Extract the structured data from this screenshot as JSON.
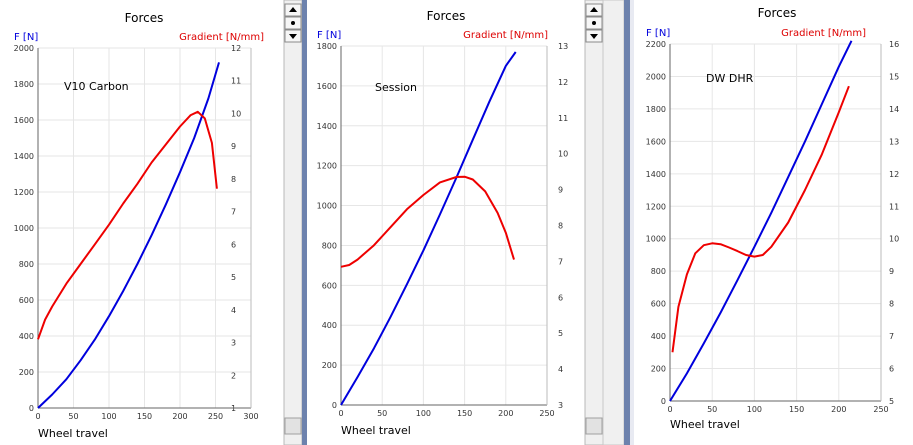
{
  "colors": {
    "force": "#0000dd",
    "gradient": "#ee0000",
    "axis_left_label": "#0000dd",
    "axis_right_label": "#dd0000",
    "divider": "#6d82ad",
    "scrollbar_track": "#f0f0f0",
    "scrollbar_border": "#b9b9b9"
  },
  "icons": {
    "scroll_up": "triangle-up-icon",
    "scroll_mid": "dot-icon",
    "scroll_down": "triangle-down-icon"
  },
  "chart_data": [
    {
      "type": "line",
      "title": "Forces",
      "xlabel": "Wheel travel",
      "ylabel": "F [N]",
      "y2label": "Gradient [N/mm]",
      "annotation": "V10 Carbon",
      "xlim": [
        0,
        300
      ],
      "ylim": [
        0,
        2000
      ],
      "y2lim": [
        1,
        12
      ],
      "x_ticks": [
        0,
        50,
        100,
        150,
        200,
        250,
        300
      ],
      "y_ticks": [
        0,
        200,
        400,
        600,
        800,
        1000,
        1200,
        1400,
        1600,
        1800,
        2000
      ],
      "y2_ticks": [
        1,
        2,
        3,
        4,
        5,
        6,
        7,
        8,
        9,
        10,
        11,
        12
      ],
      "grid": true,
      "series": [
        {
          "axis": "left",
          "x": [
            0,
            20,
            40,
            60,
            80,
            100,
            120,
            140,
            160,
            180,
            200,
            220,
            240,
            255
          ],
          "y": [
            0,
            75,
            160,
            265,
            380,
            510,
            650,
            800,
            960,
            1130,
            1310,
            1500,
            1720,
            1920
          ]
        },
        {
          "axis": "right",
          "x": [
            0,
            10,
            20,
            40,
            60,
            80,
            100,
            120,
            140,
            160,
            180,
            200,
            215,
            225,
            235,
            245,
            252
          ],
          "y": [
            3.1,
            3.7,
            4.1,
            4.8,
            5.4,
            6.0,
            6.6,
            7.25,
            7.85,
            8.5,
            9.05,
            9.6,
            9.95,
            10.05,
            9.85,
            9.1,
            7.7
          ]
        }
      ]
    },
    {
      "type": "line",
      "title": "Forces",
      "xlabel": "Wheel travel",
      "ylabel": "F [N]",
      "y2label": "Gradient [N/mm]",
      "annotation": "Session",
      "xlim": [
        0,
        250
      ],
      "ylim": [
        0,
        1800
      ],
      "y2lim": [
        3,
        13
      ],
      "x_ticks": [
        0,
        50,
        100,
        150,
        200,
        250
      ],
      "y_ticks": [
        0,
        200,
        400,
        600,
        800,
        1000,
        1200,
        1400,
        1600,
        1800
      ],
      "y2_ticks": [
        3,
        4,
        5,
        6,
        7,
        8,
        9,
        10,
        11,
        12,
        13
      ],
      "grid": true,
      "series": [
        {
          "axis": "left",
          "x": [
            0,
            20,
            40,
            60,
            80,
            100,
            120,
            140,
            160,
            180,
            200,
            212
          ],
          "y": [
            0,
            140,
            285,
            440,
            605,
            775,
            955,
            1140,
            1330,
            1520,
            1700,
            1770
          ]
        },
        {
          "axis": "right",
          "x": [
            0,
            10,
            20,
            40,
            60,
            80,
            100,
            120,
            140,
            150,
            160,
            175,
            190,
            200,
            210
          ],
          "y": [
            6.85,
            6.9,
            7.05,
            7.45,
            7.95,
            8.45,
            8.85,
            9.2,
            9.35,
            9.36,
            9.28,
            8.95,
            8.35,
            7.8,
            7.05
          ]
        }
      ]
    },
    {
      "type": "line",
      "title": "Forces",
      "xlabel": "Wheel travel",
      "ylabel": "F [N]",
      "y2label": "Gradient [N/mm]",
      "annotation": "DW DHR",
      "xlim": [
        0,
        250
      ],
      "ylim": [
        0,
        2200
      ],
      "y2lim": [
        5,
        16
      ],
      "x_ticks": [
        0,
        50,
        100,
        150,
        200,
        250
      ],
      "y_ticks": [
        0,
        200,
        400,
        600,
        800,
        1000,
        1200,
        1400,
        1600,
        1800,
        2000,
        2200
      ],
      "y2_ticks": [
        5,
        6,
        7,
        8,
        9,
        10,
        11,
        12,
        13,
        14,
        15,
        16
      ],
      "grid": true,
      "series": [
        {
          "axis": "left",
          "x": [
            0,
            20,
            40,
            60,
            80,
            100,
            120,
            140,
            160,
            180,
            200,
            215
          ],
          "y": [
            0,
            170,
            355,
            545,
            745,
            950,
            1160,
            1380,
            1600,
            1830,
            2060,
            2220
          ]
        },
        {
          "axis": "right",
          "x": [
            3,
            10,
            20,
            30,
            40,
            50,
            60,
            70,
            80,
            90,
            100,
            110,
            120,
            140,
            160,
            180,
            200,
            212
          ],
          "y": [
            6.5,
            7.9,
            8.9,
            9.55,
            9.8,
            9.86,
            9.83,
            9.73,
            9.62,
            9.5,
            9.45,
            9.5,
            9.75,
            10.5,
            11.5,
            12.6,
            13.9,
            14.7
          ]
        }
      ]
    }
  ]
}
